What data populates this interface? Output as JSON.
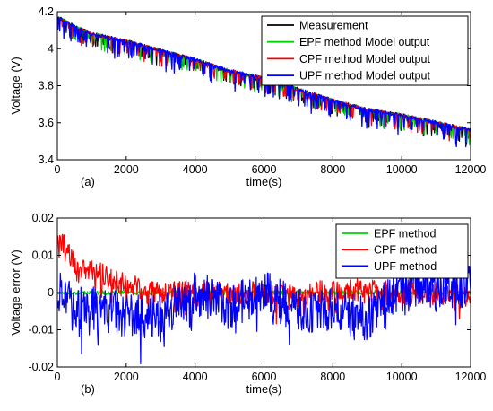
{
  "chart_data": [
    {
      "type": "line",
      "panel_label": "(a)",
      "xlabel": "time(s)",
      "ylabel": "Voltage (V)",
      "xlim": [
        0,
        12000
      ],
      "ylim": [
        3.4,
        4.2
      ],
      "xticks": [
        0,
        2000,
        4000,
        6000,
        8000,
        10000,
        12000
      ],
      "yticks": [
        3.4,
        3.6,
        3.8,
        4.0,
        4.2
      ],
      "ytick_labels": [
        "3.4",
        "3.6",
        "3.8",
        "4",
        "4.2"
      ],
      "grid": false,
      "legend_position": "top-right",
      "series": [
        {
          "name": "Measurement",
          "color": "#000000",
          "x": [
            0,
            500,
            1000,
            2000,
            3000,
            4000,
            5000,
            6000,
            7000,
            8000,
            9000,
            10000,
            11000,
            12000
          ],
          "y": [
            4.17,
            4.12,
            4.08,
            4.04,
            3.99,
            3.94,
            3.88,
            3.84,
            3.78,
            3.72,
            3.67,
            3.64,
            3.6,
            3.56
          ]
        },
        {
          "name": "EPF method Model output",
          "color": "#00d400",
          "x": [
            0,
            500,
            1000,
            2000,
            3000,
            4000,
            5000,
            6000,
            7000,
            8000,
            9000,
            10000,
            11000,
            12000
          ],
          "y": [
            4.17,
            4.12,
            4.08,
            4.04,
            3.99,
            3.94,
            3.88,
            3.84,
            3.78,
            3.72,
            3.67,
            3.64,
            3.6,
            3.56
          ]
        },
        {
          "name": "CPF method Model output",
          "color": "#ff0000",
          "x": [
            0,
            500,
            1000,
            2000,
            3000,
            4000,
            5000,
            6000,
            7000,
            8000,
            9000,
            10000,
            11000,
            12000
          ],
          "y": [
            4.17,
            4.12,
            4.08,
            4.04,
            3.99,
            3.94,
            3.88,
            3.84,
            3.78,
            3.72,
            3.67,
            3.64,
            3.6,
            3.56
          ]
        },
        {
          "name": "UPF method Model output",
          "color": "#0000ff",
          "x": [
            0,
            500,
            1000,
            2000,
            3000,
            4000,
            5000,
            6000,
            7000,
            8000,
            9000,
            10000,
            11000,
            12000
          ],
          "y": [
            4.17,
            4.12,
            4.08,
            4.04,
            3.99,
            3.94,
            3.88,
            3.84,
            3.78,
            3.72,
            3.67,
            3.64,
            3.6,
            3.56
          ]
        }
      ]
    },
    {
      "type": "line",
      "panel_label": "(b)",
      "xlabel": "time(s)",
      "ylabel": "Voltage error (V)",
      "xlim": [
        0,
        12000
      ],
      "ylim": [
        -0.02,
        0.02
      ],
      "xticks": [
        0,
        2000,
        4000,
        6000,
        8000,
        10000,
        12000
      ],
      "yticks": [
        -0.02,
        -0.01,
        0,
        0.01,
        0.02
      ],
      "ytick_labels": [
        "-0.02",
        "-0.01",
        "0",
        "0.01",
        "0.02"
      ],
      "grid": false,
      "legend_position": "top-right",
      "series": [
        {
          "name": "EPF method",
          "color": "#00d400",
          "x": [
            0,
            2000,
            4000,
            6000,
            8000,
            10000,
            12000
          ],
          "y": [
            0,
            0,
            0,
            0,
            0,
            0,
            0
          ]
        },
        {
          "name": "CPF method",
          "color": "#ff0000",
          "x": [
            0,
            500,
            1000,
            2000,
            3000,
            4000,
            5000,
            6000,
            7000,
            8000,
            9000,
            10000,
            11000,
            12000
          ],
          "y": [
            0.016,
            0.008,
            0.006,
            0.002,
            0,
            0,
            0,
            0,
            -0.001,
            0.001,
            0.0005,
            0,
            0,
            -0.001
          ]
        },
        {
          "name": "UPF method",
          "color": "#0000ff",
          "x": [
            0,
            500,
            1000,
            2000,
            3000,
            4000,
            5000,
            6000,
            7000,
            8000,
            9000,
            10000,
            11000,
            12000
          ],
          "y": [
            0,
            -0.004,
            -0.004,
            -0.006,
            -0.007,
            0,
            -0.004,
            0,
            -0.005,
            -0.005,
            -0.007,
            0.002,
            0.002,
            0.0015
          ]
        }
      ]
    }
  ]
}
